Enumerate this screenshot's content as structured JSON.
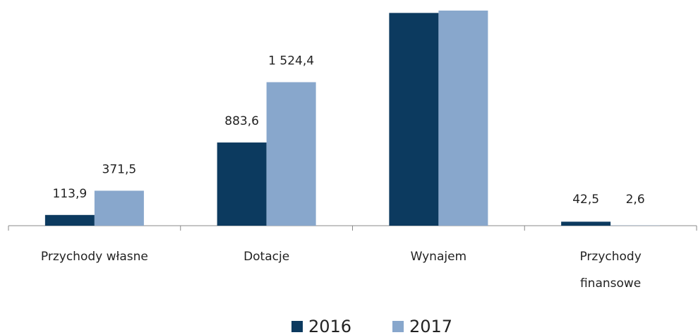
{
  "chart_data": {
    "type": "bar",
    "categories": [
      "Przychody własne",
      "Dotacje",
      "Wynajem",
      "Przychody\nfinansowe"
    ],
    "series": [
      {
        "name": "2016",
        "color": "#0c3a5f",
        "values": [
          113.9,
          883.6,
          2260,
          42.5
        ],
        "value_labels": [
          "113,9",
          "883,6",
          null,
          "42,5"
        ]
      },
      {
        "name": "2017",
        "color": "#88a7cc",
        "values": [
          371.5,
          1524.4,
          2285,
          2.6
        ],
        "value_labels": [
          "371,5",
          "1 524,4",
          null,
          "2,6"
        ]
      }
    ],
    "legend": "bottom"
  }
}
